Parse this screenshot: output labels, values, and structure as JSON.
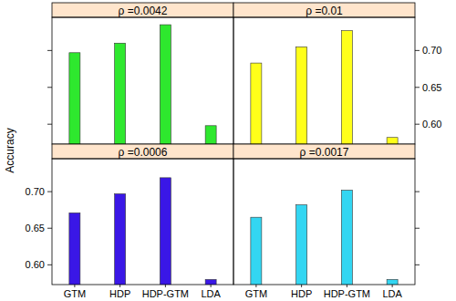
{
  "chart_data": [
    {
      "type": "bar",
      "title": "ρ =0.0042",
      "y_label": "Accuracy",
      "categories": [
        "GTM",
        "HDP",
        "HDP-GTM",
        "LDA"
      ],
      "values": [
        0.697,
        0.71,
        0.735,
        0.598
      ],
      "color": "#2ee82e",
      "ylim": [
        0.573,
        0.745
      ],
      "yticks": [
        {
          "value": 0.6,
          "label": "0.60"
        },
        {
          "value": 0.65,
          "label": "0.65"
        },
        {
          "value": 0.7,
          "label": "0.70"
        }
      ],
      "tick_labels": false
    },
    {
      "type": "bar",
      "title": "ρ =0.01",
      "categories": [
        "GTM",
        "HDP",
        "HDP-GTM",
        "LDA"
      ],
      "values": [
        0.683,
        0.705,
        0.727,
        0.582
      ],
      "color": "#ffff1a",
      "ylim": [
        0.573,
        0.745
      ],
      "yticks": [
        {
          "value": 0.6,
          "label": "0.60"
        },
        {
          "value": 0.65,
          "label": "0.65"
        },
        {
          "value": 0.7,
          "label": "0.70"
        }
      ],
      "tick_labels": "y"
    },
    {
      "type": "bar",
      "title": "ρ =0.0006",
      "categories": [
        "GTM",
        "HDP",
        "HDP-GTM",
        "LDA"
      ],
      "values": [
        0.671,
        0.697,
        0.719,
        0.58
      ],
      "color": "#3a17e6",
      "ylim": [
        0.573,
        0.745
      ],
      "yticks": [
        {
          "value": 0.6,
          "label": "0.60"
        },
        {
          "value": 0.65,
          "label": "0.65"
        },
        {
          "value": 0.7,
          "label": "0.70"
        }
      ],
      "tick_labels": true
    },
    {
      "type": "bar",
      "title": "ρ =0.0017",
      "categories": [
        "GTM",
        "HDP",
        "HDP-GTM",
        "LDA"
      ],
      "values": [
        0.665,
        0.682,
        0.702,
        0.58
      ],
      "color": "#33d6f2",
      "ylim": [
        0.573,
        0.745
      ],
      "yticks": [
        {
          "value": 0.6,
          "label": "0.60"
        },
        {
          "value": 0.65,
          "label": "0.65"
        },
        {
          "value": 0.7,
          "label": "0.70"
        }
      ],
      "tick_labels": "x"
    }
  ]
}
